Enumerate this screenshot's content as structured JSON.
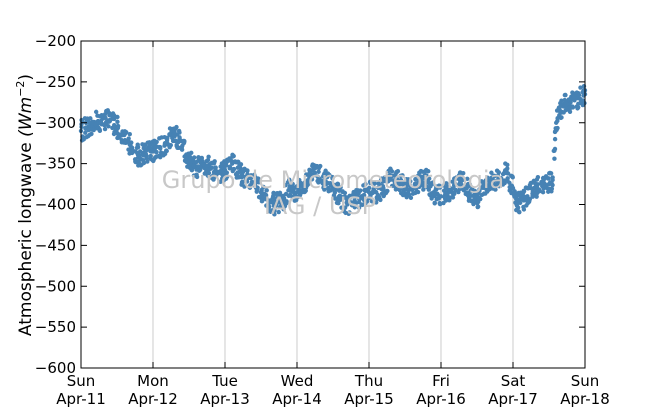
{
  "watermark": {
    "line1": "Grupo de Micrometeorologia",
    "line2": "IAG / USP"
  },
  "chart_data": {
    "type": "scatter",
    "ylabel_text": "Atmospheric longwave ",
    "ylabel_units": "(Wm",
    "ylabel_exp": "−2",
    "ylabel_close": ")",
    "ylim": [
      -600,
      -200
    ],
    "yticks": [
      -200,
      -250,
      -300,
      -350,
      -400,
      -450,
      -500,
      -550,
      -600
    ],
    "xlim": [
      0,
      7
    ],
    "xticks": [
      {
        "pos": 0,
        "day": "Sun",
        "date": "Apr-11"
      },
      {
        "pos": 1,
        "day": "Mon",
        "date": "Apr-12"
      },
      {
        "pos": 2,
        "day": "Tue",
        "date": "Apr-13"
      },
      {
        "pos": 3,
        "day": "Wed",
        "date": "Apr-14"
      },
      {
        "pos": 4,
        "day": "Thu",
        "date": "Apr-15"
      },
      {
        "pos": 5,
        "day": "Fri",
        "date": "Apr-16"
      },
      {
        "pos": 6,
        "day": "Sat",
        "date": "Apr-17"
      },
      {
        "pos": 7,
        "day": "Sun",
        "date": "Apr-18"
      }
    ],
    "grid": "vertical",
    "marker_color": "#4682b4",
    "series": [
      {
        "x": [
          0.0,
          0.1,
          0.2,
          0.3,
          0.4,
          0.5,
          0.6,
          0.7,
          0.8,
          0.9,
          1.0,
          1.1,
          1.2,
          1.3,
          1.4,
          1.5,
          1.6,
          1.7,
          1.8,
          1.9,
          2.0,
          2.1,
          2.2,
          2.3,
          2.4,
          2.5,
          2.6,
          2.7,
          2.8,
          2.9,
          3.0,
          3.1,
          3.2,
          3.3,
          3.4,
          3.5,
          3.6,
          3.7,
          3.8,
          3.9,
          4.0,
          4.1,
          4.2,
          4.3,
          4.4,
          4.5,
          4.6,
          4.7,
          4.8,
          4.9,
          5.0,
          5.1,
          5.2,
          5.3,
          5.4,
          5.5,
          5.6,
          5.7,
          5.8,
          5.9,
          6.0,
          6.05,
          6.1,
          6.15,
          6.2,
          6.3,
          6.4,
          6.5,
          6.55,
          6.6,
          6.65,
          6.7,
          6.8,
          6.9,
          7.0
        ],
        "y": [
          -310,
          -305,
          -300,
          -295,
          -298,
          -305,
          -315,
          -330,
          -340,
          -338,
          -335,
          -330,
          -325,
          -310,
          -330,
          -345,
          -355,
          -350,
          -355,
          -360,
          -358,
          -350,
          -360,
          -370,
          -375,
          -385,
          -395,
          -400,
          -395,
          -380,
          -385,
          -375,
          -365,
          -360,
          -372,
          -380,
          -390,
          -400,
          -395,
          -390,
          -385,
          -385,
          -380,
          -368,
          -370,
          -378,
          -382,
          -370,
          -368,
          -385,
          -390,
          -385,
          -375,
          -370,
          -385,
          -395,
          -375,
          -372,
          -370,
          -360,
          -380,
          -400,
          -398,
          -395,
          -390,
          -380,
          -375,
          -375,
          -370,
          -300,
          -285,
          -280,
          -275,
          -270,
          -265
        ]
      }
    ]
  }
}
